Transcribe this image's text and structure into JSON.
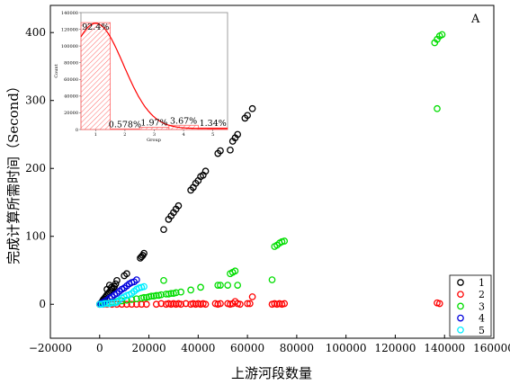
{
  "chart_data": [
    {
      "type": "scatter",
      "panel_label": "A",
      "xlabel": "上游河段数量",
      "ylabel": "完成计算所需时间（Second）",
      "xlim": [
        -20000,
        160000
      ],
      "ylim": [
        -50,
        440
      ],
      "xticks": [
        "−20000",
        "0",
        "20000",
        "40000",
        "60000",
        "80000",
        "100000",
        "120000",
        "140000",
        "160000"
      ],
      "yticks": [
        "0",
        "100",
        "200",
        "300",
        "400"
      ],
      "legend_position": "bottom-right",
      "marker": "open-circle",
      "series": [
        {
          "name": "1",
          "color": "#000000",
          "points": [
            [
              0,
              0
            ],
            [
              300,
              1
            ],
            [
              600,
              2
            ],
            [
              900,
              3
            ],
            [
              1200,
              5
            ],
            [
              1500,
              7
            ],
            [
              1800,
              8
            ],
            [
              2200,
              10
            ],
            [
              2600,
              12
            ],
            [
              3000,
              14
            ],
            [
              3500,
              16
            ],
            [
              4000,
              18
            ],
            [
              4500,
              20
            ],
            [
              5000,
              22
            ],
            [
              5500,
              24
            ],
            [
              6000,
              26
            ],
            [
              3000,
              22
            ],
            [
              4000,
              28
            ],
            [
              4800,
              25
            ],
            [
              6500,
              30
            ],
            [
              7000,
              35
            ],
            [
              10000,
              42
            ],
            [
              11000,
              45
            ],
            [
              16500,
              68
            ],
            [
              17000,
              70
            ],
            [
              17500,
              72
            ],
            [
              18000,
              75
            ],
            [
              26000,
              110
            ],
            [
              28000,
              125
            ],
            [
              29000,
              130
            ],
            [
              30000,
              135
            ],
            [
              31000,
              140
            ],
            [
              32000,
              145
            ],
            [
              37000,
              168
            ],
            [
              38000,
              172
            ],
            [
              39000,
              178
            ],
            [
              40000,
              182
            ],
            [
              41000,
              188
            ],
            [
              42000,
              190
            ],
            [
              43000,
              196
            ],
            [
              48000,
              222
            ],
            [
              49000,
              226
            ],
            [
              53000,
              227
            ],
            [
              54000,
              240
            ],
            [
              55000,
              245
            ],
            [
              56000,
              250
            ],
            [
              59000,
              274
            ],
            [
              60000,
              278
            ],
            [
              62000,
              288
            ]
          ]
        },
        {
          "name": "2",
          "color": "#ff0000",
          "points": [
            [
              0,
              0
            ],
            [
              1500,
              0
            ],
            [
              3000,
              0
            ],
            [
              5000,
              0
            ],
            [
              7000,
              0
            ],
            [
              9000,
              0
            ],
            [
              11000,
              0
            ],
            [
              13000,
              0
            ],
            [
              15000,
              0
            ],
            [
              17000,
              0
            ],
            [
              19000,
              0
            ],
            [
              23000,
              0
            ],
            [
              25000,
              1
            ],
            [
              27000,
              0
            ],
            [
              28000,
              1
            ],
            [
              29000,
              0
            ],
            [
              30000,
              1
            ],
            [
              31000,
              0
            ],
            [
              32000,
              1
            ],
            [
              33000,
              0
            ],
            [
              35000,
              1
            ],
            [
              37000,
              0
            ],
            [
              38000,
              1
            ],
            [
              39000,
              0
            ],
            [
              40000,
              1
            ],
            [
              41000,
              0
            ],
            [
              42000,
              1
            ],
            [
              43000,
              0
            ],
            [
              47000,
              1
            ],
            [
              48000,
              0
            ],
            [
              49000,
              1
            ],
            [
              52000,
              1
            ],
            [
              53000,
              0
            ],
            [
              54000,
              1
            ],
            [
              55000,
              4
            ],
            [
              56000,
              1
            ],
            [
              57000,
              0
            ],
            [
              60000,
              1
            ],
            [
              61000,
              1
            ],
            [
              62000,
              11
            ],
            [
              70000,
              0
            ],
            [
              71000,
              1
            ],
            [
              72000,
              0
            ],
            [
              73000,
              1
            ],
            [
              74000,
              0
            ],
            [
              75000,
              1
            ],
            [
              137000,
              2
            ],
            [
              138000,
              1
            ]
          ]
        },
        {
          "name": "3",
          "color": "#00dd00",
          "points": [
            [
              1500,
              1
            ],
            [
              3000,
              2
            ],
            [
              5000,
              3
            ],
            [
              7000,
              4
            ],
            [
              9000,
              5
            ],
            [
              11000,
              6
            ],
            [
              13000,
              7
            ],
            [
              15000,
              8
            ],
            [
              17000,
              9
            ],
            [
              18000,
              10
            ],
            [
              19000,
              10
            ],
            [
              20000,
              11
            ],
            [
              21000,
              12
            ],
            [
              22000,
              12
            ],
            [
              23000,
              13
            ],
            [
              24000,
              13
            ],
            [
              25000,
              14
            ],
            [
              26000,
              35
            ],
            [
              27000,
              15
            ],
            [
              28000,
              15
            ],
            [
              29000,
              16
            ],
            [
              30000,
              16
            ],
            [
              31000,
              17
            ],
            [
              33000,
              18
            ],
            [
              37000,
              21
            ],
            [
              41000,
              25
            ],
            [
              48000,
              28
            ],
            [
              49000,
              28
            ],
            [
              52000,
              28
            ],
            [
              53000,
              45
            ],
            [
              54000,
              47
            ],
            [
              55000,
              49
            ],
            [
              56000,
              28
            ],
            [
              70000,
              36
            ],
            [
              71000,
              85
            ],
            [
              72000,
              87
            ],
            [
              73000,
              90
            ],
            [
              74000,
              92
            ],
            [
              75000,
              93
            ],
            [
              137000,
              288
            ],
            [
              136000,
              385
            ],
            [
              137000,
              390
            ],
            [
              138000,
              395
            ],
            [
              139000,
              397
            ]
          ]
        },
        {
          "name": "4",
          "color": "#0000dd",
          "points": [
            [
              500,
              1
            ],
            [
              1000,
              2
            ],
            [
              2000,
              4
            ],
            [
              3000,
              6
            ],
            [
              4000,
              9
            ],
            [
              5000,
              11
            ],
            [
              6000,
              14
            ],
            [
              7000,
              16
            ],
            [
              8000,
              19
            ],
            [
              9000,
              22
            ],
            [
              10000,
              24
            ],
            [
              11000,
              27
            ],
            [
              12000,
              30
            ],
            [
              13000,
              32
            ],
            [
              14000,
              33
            ],
            [
              15000,
              36
            ]
          ]
        },
        {
          "name": "5",
          "color": "#00eeff",
          "points": [
            [
              0,
              0
            ],
            [
              1000,
              0
            ],
            [
              2000,
              1
            ],
            [
              3000,
              1
            ],
            [
              4000,
              1
            ],
            [
              5000,
              2
            ],
            [
              6000,
              2
            ],
            [
              7000,
              3
            ],
            [
              8000,
              6
            ],
            [
              9000,
              9
            ],
            [
              10000,
              11
            ],
            [
              11000,
              13
            ],
            [
              12000,
              14
            ],
            [
              13000,
              16
            ],
            [
              14000,
              19
            ],
            [
              15000,
              22
            ],
            [
              16000,
              24
            ],
            [
              17000,
              25
            ],
            [
              18000,
              26
            ]
          ]
        }
      ]
    },
    {
      "type": "bar",
      "role": "inset-histogram",
      "xlabel": "Group",
      "ylabel": "Count",
      "xlim": [
        0.5,
        5.5
      ],
      "ylim": [
        0,
        140000
      ],
      "xticks": [
        "1",
        "2",
        "3",
        "4",
        "5"
      ],
      "yticks": [
        "0",
        "20000",
        "40000",
        "60000",
        "80000",
        "100000",
        "120000",
        "140000"
      ],
      "categories": [
        "1",
        "2",
        "3",
        "4",
        "5"
      ],
      "values": [
        128000,
        800,
        2700,
        5100,
        1900
      ],
      "bar_labels": [
        "92.4%",
        "0.578%",
        "1.97%",
        "3.67%",
        "1.34%"
      ],
      "bar_color": "#ff4444",
      "curve_color": "#ff0000"
    }
  ]
}
